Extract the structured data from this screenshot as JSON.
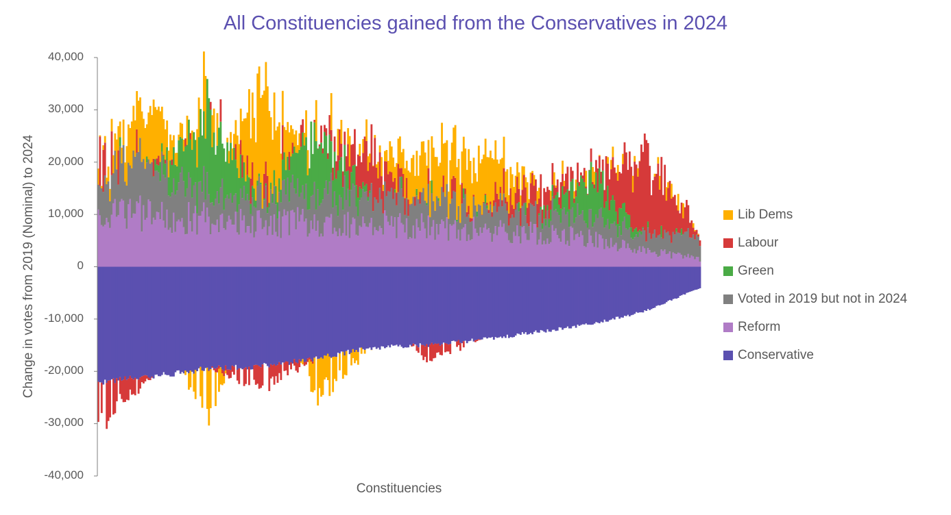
{
  "chart_data": {
    "type": "bar",
    "stacked": true,
    "title": "All Constituencies gained from the Conservatives in 2024",
    "xlabel": "Constituencies",
    "ylabel": "Change in votes from 2019 (Nominal) to 2024",
    "ylim": [
      -40000,
      40000
    ],
    "yticks": [
      "40,000",
      "30,000",
      "20,000",
      "10,000",
      "0",
      "-10,000",
      "-20,000",
      "-30,000",
      "-40,000"
    ],
    "ytick_values": [
      40000,
      30000,
      20000,
      10000,
      0,
      -10000,
      -20000,
      -30000,
      -40000
    ],
    "legend_position": "right",
    "grid": false,
    "series": [
      {
        "name": "Lib Dems",
        "color": "#ffb000"
      },
      {
        "name": "Labour",
        "color": "#d63a3a"
      },
      {
        "name": "Green",
        "color": "#4aab46"
      },
      {
        "name": "Voted in 2019 but not in 2024",
        "color": "#808080"
      },
      {
        "name": "Reform",
        "color": "#b07cc6"
      },
      {
        "name": "Conservative",
        "color": "#5b50b0"
      }
    ],
    "sample_bars": [
      {
        "Conservative": -22000,
        "Reform": 10500,
        "Voted in 2019 but not in 2024": 6500,
        "Lib Dems": 0,
        "Labour": -8000,
        "Green": 0
      },
      {
        "Conservative": -21000,
        "Reform": 10000,
        "Voted in 2019 but not in 2024": 11000,
        "Lib Dems": 10000,
        "Labour": 0,
        "Green": 0
      },
      {
        "Conservative": -19500,
        "Reform": 9200,
        "Voted in 2019 but not in 2024": 5000,
        "Green": 14000,
        "Lib Dems": -9000,
        "Labour": 0
      },
      {
        "Conservative": -19000,
        "Reform": 8000,
        "Voted in 2019 but not in 2024": 5000,
        "Lib Dems": 17000,
        "Labour": -4000,
        "Green": 0
      },
      {
        "Conservative": -17500,
        "Reform": 8800,
        "Voted in 2019 but not in 2024": 6000,
        "Green": 10500,
        "Lib Dems": -7500,
        "Labour": 0
      },
      {
        "Conservative": -15500,
        "Reform": 8200,
        "Voted in 2019 but not in 2024": 5500,
        "Labour": 7500,
        "Lib Dems": 0,
        "Green": 0
      },
      {
        "Conservative": -15000,
        "Reform": 7500,
        "Voted in 2019 but not in 2024": 5000,
        "Lib Dems": 7500,
        "Labour": -3000,
        "Green": 0
      },
      {
        "Conservative": -14000,
        "Reform": 7000,
        "Voted in 2019 but not in 2024": 4500,
        "Lib Dems": 8500,
        "Labour": 0,
        "Green": 0
      },
      {
        "Conservative": -12500,
        "Reform": 6300,
        "Voted in 2019 but not in 2024": 4000,
        "Lib Dems": 0,
        "Labour": 3500,
        "Green": 0
      },
      {
        "Conservative": -11000,
        "Reform": 5500,
        "Voted in 2019 but not in 2024": 4500,
        "Lib Dems": 0,
        "Labour": 0,
        "Green": 7000
      },
      {
        "Conservative": -8500,
        "Reform": 3000,
        "Voted in 2019 but not in 2024": 3000,
        "Lib Dems": 0,
        "Labour": 14000,
        "Green": 0
      },
      {
        "Conservative": -4000,
        "Reform": 1500,
        "Voted in 2019 but not in 2024": 4000,
        "Lib Dems": 0,
        "Labour": 0,
        "Green": 0
      }
    ]
  }
}
